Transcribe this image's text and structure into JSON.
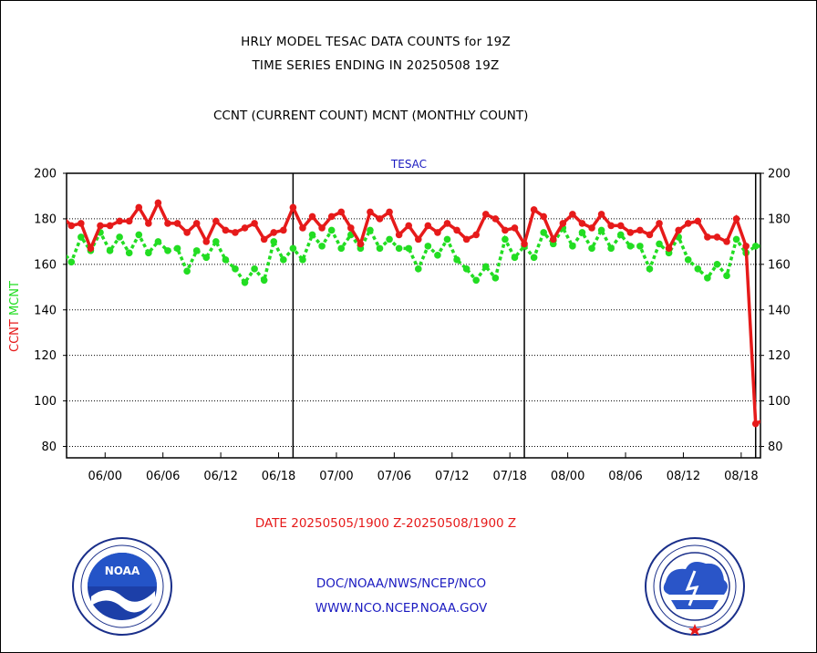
{
  "header": {
    "title": "HRLY MODEL TESAC DATA COUNTS for 19Z",
    "subtitle": "TIME SERIES ENDING IN 20250508 19Z",
    "counts_label": "CCNT (CURRENT COUNT) MCNT (MONTHLY COUNT)"
  },
  "footer": {
    "date_range": "DATE 20250505/1900 Z-20250508/1900 Z",
    "link1": "DOC/NOAA/NWS/NCEP/NCO",
    "link2": "WWW.NCO.NCEP.NOAA.GOV"
  },
  "logos": {
    "noaa": "noaa-logo",
    "nws": "nws-logo"
  },
  "chart_data": {
    "type": "line",
    "title": "TESAC",
    "ylabel_left": [
      "CCNT",
      "MCNT"
    ],
    "ylim": [
      75,
      200
    ],
    "yticks": [
      80,
      100,
      120,
      140,
      160,
      180,
      200
    ],
    "xlim": [
      0,
      72
    ],
    "xticks": [
      {
        "x": 4,
        "label": "06/00"
      },
      {
        "x": 10,
        "label": "06/06"
      },
      {
        "x": 16,
        "label": "06/12"
      },
      {
        "x": 22,
        "label": "06/18"
      },
      {
        "x": 28,
        "label": "07/00"
      },
      {
        "x": 34,
        "label": "07/06"
      },
      {
        "x": 40,
        "label": "07/12"
      },
      {
        "x": 46,
        "label": "07/18"
      },
      {
        "x": 52,
        "label": "08/00"
      },
      {
        "x": 58,
        "label": "08/06"
      },
      {
        "x": 64,
        "label": "08/12"
      },
      {
        "x": 70,
        "label": "08/18"
      }
    ],
    "day_boundaries": [
      23.5,
      47.5,
      71.5
    ],
    "grid": true,
    "series": [
      {
        "name": "CCNT",
        "color": "#e61a1a",
        "x": [
          -0.5,
          0.5,
          1.5,
          2.5,
          3.5,
          4.5,
          5.5,
          6.5,
          7.5,
          8.5,
          9.5,
          10.5,
          11.5,
          12.5,
          13.5,
          14.5,
          15.5,
          16.5,
          17.5,
          18.5,
          19.5,
          20.5,
          21.5,
          22.5,
          23.5,
          24.5,
          25.5,
          26.5,
          27.5,
          28.5,
          29.5,
          30.5,
          31.5,
          32.5,
          33.5,
          34.5,
          35.5,
          36.5,
          37.5,
          38.5,
          39.5,
          40.5,
          41.5,
          42.5,
          43.5,
          44.5,
          45.5,
          46.5,
          47.5,
          48.5,
          49.5,
          50.5,
          51.5,
          52.5,
          53.5,
          54.5,
          55.5,
          56.5,
          57.5,
          58.5,
          59.5,
          60.5,
          61.5,
          62.5,
          63.5,
          64.5,
          65.5,
          66.5,
          67.5,
          68.5,
          69.5,
          70.5,
          71.5,
          72.5
        ],
        "values": [
          181,
          177,
          178,
          167,
          177,
          177,
          179,
          179,
          185,
          178,
          187,
          178,
          178,
          174,
          178,
          170,
          179,
          175,
          174,
          176,
          178,
          171,
          174,
          175,
          185,
          176,
          181,
          176,
          181,
          183,
          176,
          169,
          183,
          180,
          183,
          173,
          177,
          171,
          177,
          174,
          178,
          175,
          171,
          173,
          182,
          180,
          175,
          176,
          169,
          184,
          181,
          171,
          178,
          182,
          178,
          176,
          182,
          177,
          177,
          174,
          175,
          173,
          178,
          167,
          175,
          178,
          179,
          172,
          172,
          170,
          180,
          168,
          90,
          92
        ]
      },
      {
        "name": "MCNT",
        "color": "#22dd22",
        "x": [
          -0.5,
          0.5,
          1.5,
          2.5,
          3.5,
          4.5,
          5.5,
          6.5,
          7.5,
          8.5,
          9.5,
          10.5,
          11.5,
          12.5,
          13.5,
          14.5,
          15.5,
          16.5,
          17.5,
          18.5,
          19.5,
          20.5,
          21.5,
          22.5,
          23.5,
          24.5,
          25.5,
          26.5,
          27.5,
          28.5,
          29.5,
          30.5,
          31.5,
          32.5,
          33.5,
          34.5,
          35.5,
          36.5,
          37.5,
          38.5,
          39.5,
          40.5,
          41.5,
          42.5,
          43.5,
          44.5,
          45.5,
          46.5,
          47.5,
          48.5,
          49.5,
          50.5,
          51.5,
          52.5,
          53.5,
          54.5,
          55.5,
          56.5,
          57.5,
          58.5,
          59.5,
          60.5,
          61.5,
          62.5,
          63.5,
          64.5,
          65.5,
          66.5,
          67.5,
          68.5,
          69.5,
          70.5,
          71.5,
          72.5
        ],
        "values": [
          166,
          161,
          172,
          166,
          174,
          166,
          172,
          165,
          173,
          165,
          170,
          166,
          167,
          157,
          166,
          163,
          170,
          162,
          158,
          152,
          158,
          153,
          170,
          162,
          167,
          162,
          173,
          168,
          175,
          167,
          173,
          167,
          175,
          167,
          171,
          167,
          167,
          158,
          168,
          164,
          171,
          162,
          158,
          153,
          159,
          154,
          171,
          163,
          168,
          163,
          174,
          169,
          176,
          168,
          174,
          167,
          175,
          167,
          173,
          168,
          168,
          158,
          169,
          165,
          172,
          162,
          158,
          154,
          160,
          155,
          171,
          165,
          168,
          168
        ]
      }
    ]
  }
}
